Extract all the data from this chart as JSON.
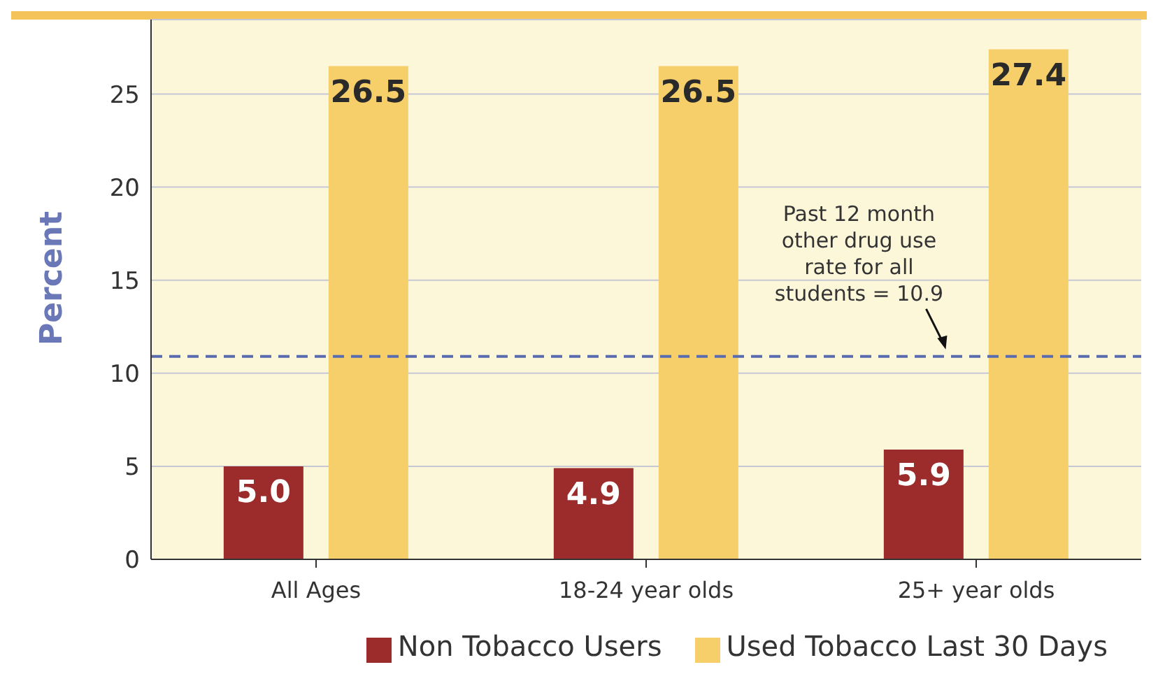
{
  "chart_data": {
    "type": "bar",
    "ylabel": "Percent",
    "categories": [
      "All Ages",
      "18-24 year olds",
      "25+ year olds"
    ],
    "series": [
      {
        "name": "Non Tobacco Users",
        "color": "#9c2b2b",
        "values": [
          5.0,
          4.9,
          5.9
        ],
        "value_labels": [
          "5.0",
          "4.9",
          "5.9"
        ]
      },
      {
        "name": "Used Tobacco Last 30 Days",
        "color": "#f6cf6a",
        "values": [
          26.5,
          26.5,
          27.4
        ],
        "value_labels": [
          "26.5",
          "26.5",
          "27.4"
        ]
      }
    ],
    "ylim": [
      0,
      29
    ],
    "yticks": [
      0,
      5,
      10,
      15,
      20,
      25
    ],
    "grid": "y",
    "legend": "bottom right",
    "ref_lines": [
      {
        "axis": "y",
        "value": 10.9,
        "label": "Past 12 month other drug use rate for all students = 10.9",
        "color": "#5a6cb0",
        "line_style": "dashed"
      }
    ]
  }
}
